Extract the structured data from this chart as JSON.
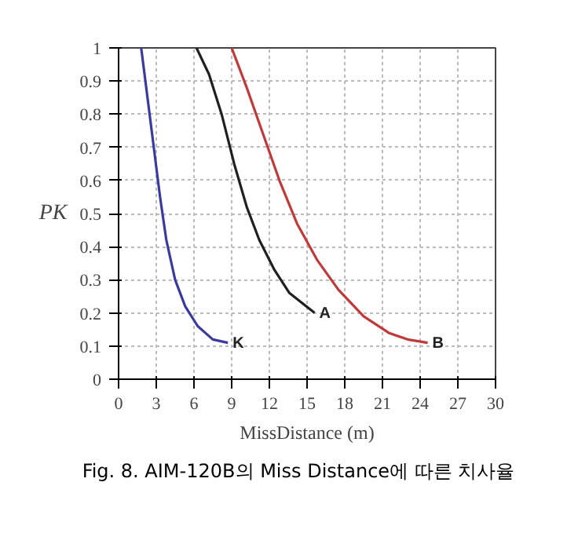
{
  "chart_data": {
    "type": "line",
    "xlabel": "MissDistance (m)",
    "ylabel": "PK",
    "series": [
      {
        "name": "K",
        "color": "#3a3aa0",
        "x": [
          1.8,
          2.3,
          2.8,
          3.3,
          3.8,
          4.5,
          5.3,
          6.3,
          7.5,
          8.7
        ],
        "values": [
          1,
          0.85,
          0.7,
          0.55,
          0.42,
          0.3,
          0.22,
          0.16,
          0.12,
          0.11
        ]
      },
      {
        "name": "A",
        "color": "#202020",
        "x": [
          6.2,
          7.2,
          8.2,
          9.2,
          10.2,
          11.2,
          12.4,
          13.6,
          15.6
        ],
        "values": [
          1,
          0.92,
          0.8,
          0.65,
          0.52,
          0.42,
          0.33,
          0.26,
          0.2
        ]
      },
      {
        "name": "B",
        "color": "#c03a3a",
        "x": [
          9,
          10.2,
          11.5,
          12.8,
          14.2,
          15.8,
          17.5,
          19.5,
          21.5,
          23,
          24.6
        ],
        "values": [
          1,
          0.88,
          0.74,
          0.6,
          0.47,
          0.36,
          0.27,
          0.19,
          0.14,
          0.12,
          0.11
        ]
      }
    ],
    "xlim": [
      0,
      30
    ],
    "xticks": [
      0,
      3,
      6,
      9,
      12,
      15,
      18,
      21,
      24,
      27,
      30
    ],
    "ylim": [
      0,
      1
    ],
    "yticks": [
      0,
      0.1,
      0.2,
      0.3,
      0.4,
      0.5,
      0.6,
      0.7,
      0.8,
      0.9,
      1
    ],
    "grid": true,
    "line_style": "solid",
    "marker": "none",
    "annotations": [
      "Fig. 8. AIM-120B의 Miss Distance에 따른 치사율"
    ]
  }
}
